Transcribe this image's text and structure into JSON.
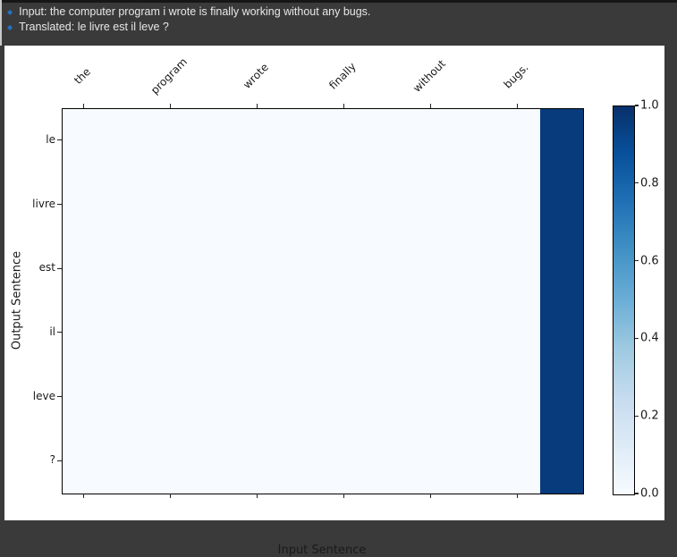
{
  "header": {
    "lines": [
      {
        "bullet": "◆",
        "text": "Input: the computer program i wrote is finally working without any bugs."
      },
      {
        "bullet": "◆",
        "text": "Translated: le livre est il leve ?"
      }
    ]
  },
  "chart_data": {
    "type": "heatmap",
    "title": "",
    "xlabel": "Input Sentence",
    "ylabel": "Output Sentence",
    "n_cols": 12,
    "n_rows": 6,
    "x_tick_labels": [
      "the",
      "program",
      "wrote",
      "finally",
      "without",
      "bugs."
    ],
    "x_tick_positions": [
      0,
      2,
      4,
      6,
      8,
      10
    ],
    "y_tick_labels": [
      "le",
      "livre",
      "est",
      "il",
      "leve",
      "?"
    ],
    "values": [
      [
        0,
        0,
        0,
        0,
        0,
        0,
        0,
        0,
        0,
        0,
        0,
        0.96
      ],
      [
        0,
        0,
        0,
        0,
        0,
        0,
        0,
        0,
        0,
        0,
        0,
        0.96
      ],
      [
        0,
        0,
        0,
        0,
        0,
        0,
        0,
        0,
        0,
        0,
        0,
        0.96
      ],
      [
        0,
        0,
        0,
        0,
        0,
        0,
        0,
        0,
        0,
        0,
        0,
        0.96
      ],
      [
        0,
        0,
        0,
        0,
        0,
        0,
        0,
        0,
        0,
        0,
        0,
        0.96
      ],
      [
        0,
        0,
        0,
        0,
        0,
        0,
        0,
        0,
        0,
        0,
        0,
        0.96
      ]
    ],
    "vmin": 0.0,
    "vmax": 1.0,
    "colormap": "Blues",
    "colorbar_tick_values": [
      0.0,
      0.2,
      0.4,
      0.6,
      0.8,
      1.0
    ],
    "colorbar_tick_labels": [
      "0.0",
      "0.2",
      "0.4",
      "0.6",
      "0.8",
      "1.0"
    ],
    "legend_position": "right-colorbar",
    "grid": false
  },
  "colors": {
    "background": "#3a3a3a",
    "figure_bg": "#ffffff",
    "accent_bullet": "#2173c4",
    "header_text": "#e8e8e8",
    "axis_text": "#1a1a1a",
    "heatmap_low": "#f7fbff",
    "heatmap_high": "#08306b",
    "blues_stops": [
      "#f7fbff",
      "#deebf7",
      "#c6dbef",
      "#9ecae1",
      "#6baed6",
      "#4292c6",
      "#2171b5",
      "#08519c",
      "#08306b"
    ]
  }
}
